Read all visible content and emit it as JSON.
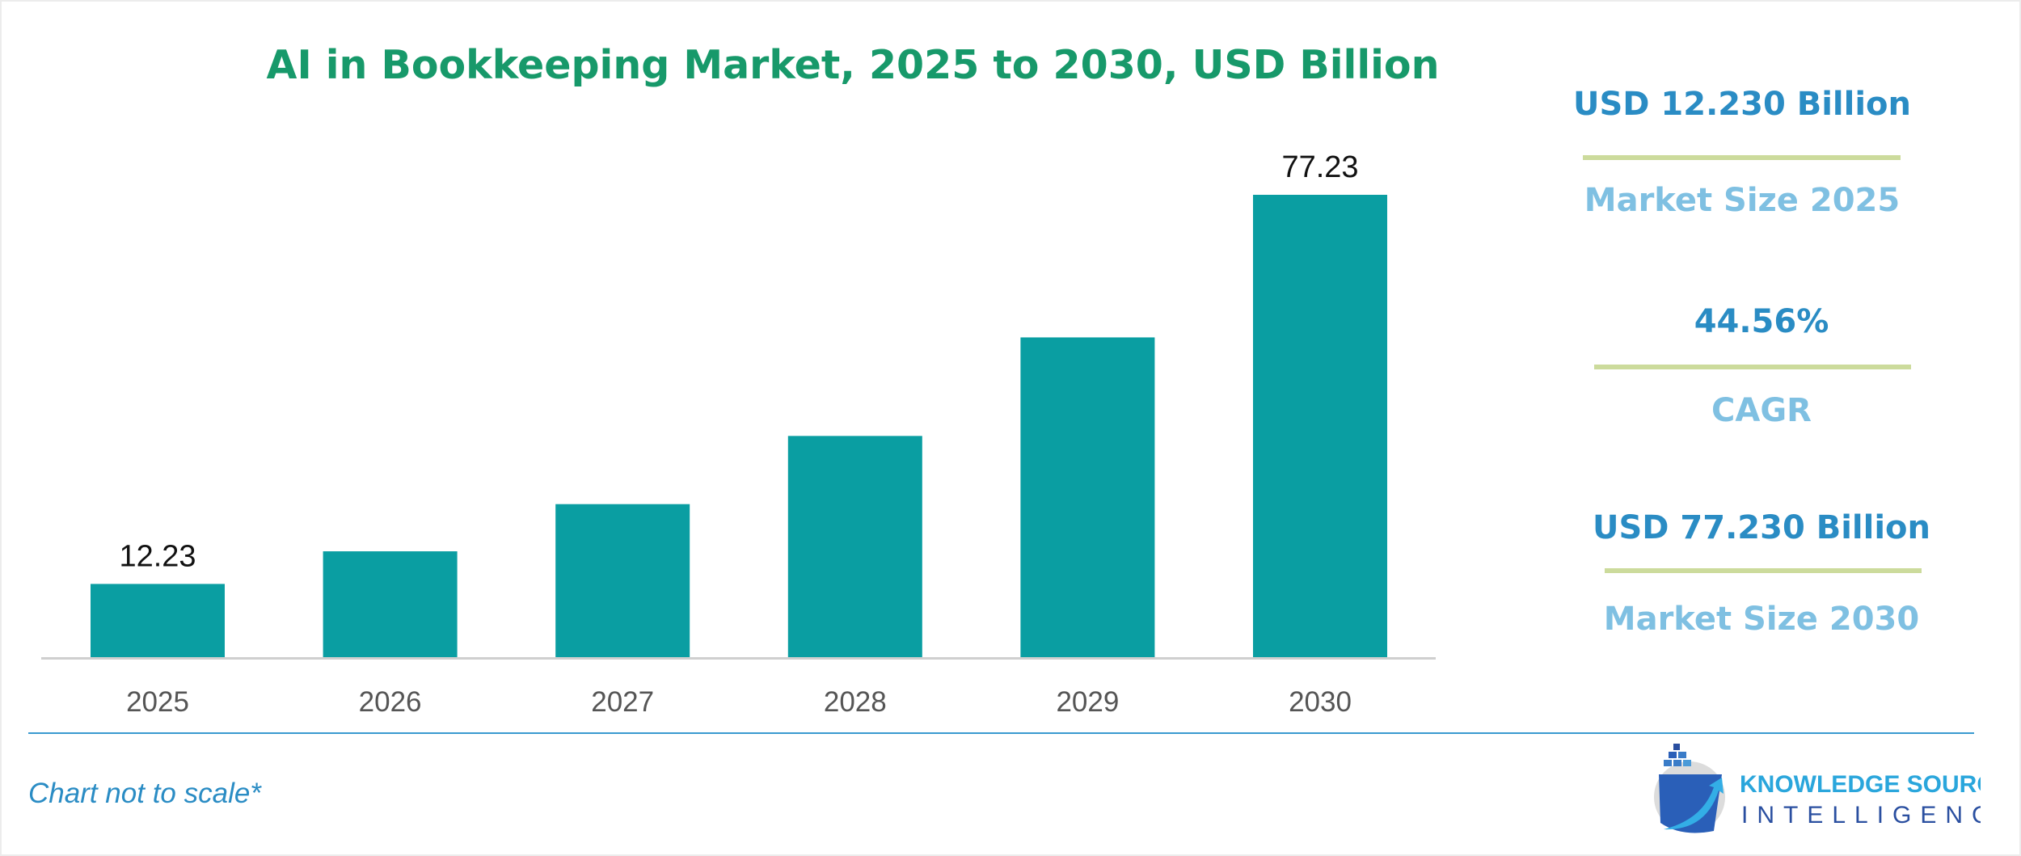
{
  "colors": {
    "bar": "#0a9ea2",
    "title": "#17996a",
    "stat_value": "#2a8cc4",
    "stat_label": "#7fc0e2",
    "rule": "#ccdb9c"
  },
  "chart_data": {
    "type": "bar",
    "title": "AI in Bookkeeping Market, 2025 to 2030, USD Billion",
    "categories": [
      "2025",
      "2026",
      "2027",
      "2028",
      "2029",
      "2030"
    ],
    "values": [
      12.23,
      17.68,
      25.56,
      36.95,
      53.41,
      77.23
    ],
    "data_labels": [
      "12.23",
      "",
      "",
      "",
      "",
      "77.23"
    ],
    "xlabel": "",
    "ylabel": "",
    "ylim": [
      0,
      80
    ],
    "grid": false,
    "note": "Chart not to scale*"
  },
  "stats": [
    {
      "value": "USD 12.230 Billion",
      "label": "Market Size 2025"
    },
    {
      "value": "44.56%",
      "label": "CAGR"
    },
    {
      "value": "USD 77.230 Billion",
      "label": "Market Size 2030"
    }
  ],
  "logo": {
    "line1": "KNOWLEDGE SOURCING",
    "line2": "INTELLIGENCE"
  }
}
